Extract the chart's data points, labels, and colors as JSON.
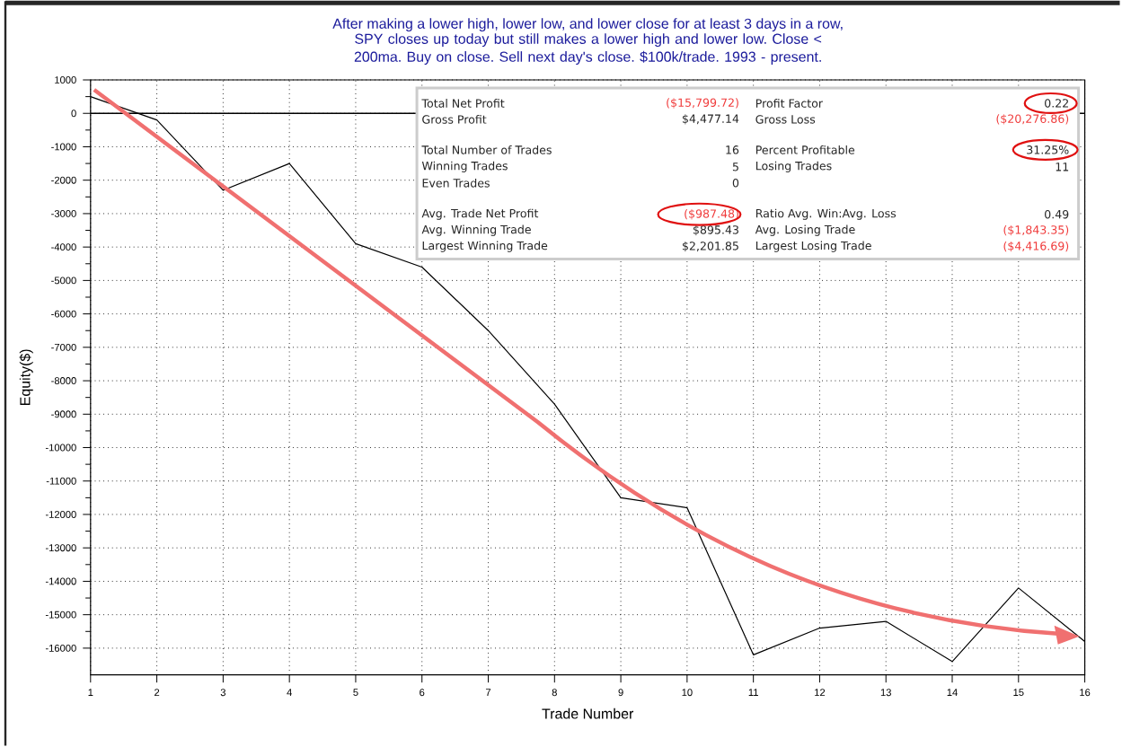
{
  "chart_data": {
    "type": "line",
    "title": "After making a lower high, lower low, and lower close for at least 3 days in a row,",
    "subtitle": "SPY closes up today but still makes a lower high and lower low. Close < 200ma. Buy on close. Sell next day's close. $100k/trade. 1993 - present.",
    "xlabel": "Trade Number",
    "ylabel": "Equity($)",
    "x": [
      1,
      2,
      3,
      4,
      5,
      6,
      7,
      8,
      9,
      10,
      11,
      12,
      13,
      14,
      15,
      16
    ],
    "series": [
      {
        "color": "#000000",
        "values": [
          500,
          -200,
          -2300,
          -1500,
          -3900,
          -4600,
          -6500,
          -8700,
          -11500,
          -11800,
          -16200,
          -15400,
          -15200,
          -16400,
          -14200,
          -15800
        ]
      }
    ],
    "xlim": [
      1,
      16
    ],
    "ylim": [
      -16800,
      1000
    ],
    "xticks": [
      1,
      2,
      3,
      4,
      5,
      6,
      7,
      8,
      9,
      10,
      11,
      12,
      13,
      14,
      15,
      16
    ],
    "yticks": [
      -16000,
      -15000,
      -14000,
      -13000,
      -12000,
      -11000,
      -10000,
      -9000,
      -8000,
      -7000,
      -6000,
      -5000,
      -4000,
      -3000,
      -2000,
      -1000,
      0,
      1000
    ],
    "ref_lines": [
      {
        "axis": "y",
        "value": 0,
        "color": "#000000"
      }
    ],
    "grid": true,
    "marker": "none",
    "line_style": "solid",
    "annotations": [
      "Total Net Profit",
      "($15,799.72)",
      "Profit Factor",
      "0.22",
      "Gross Profit",
      "$4,477.14",
      "Gross Loss",
      "($20,276.86)",
      "Total Number of Trades",
      "16",
      "Percent Profitable",
      "31.25%",
      "Winning Trades",
      "5",
      "Losing Trades",
      "11",
      "Even Trades",
      "0",
      "Avg. Trade Net Profit",
      "($987.48)",
      "Ratio Avg. Win:Avg. Loss",
      "0.49",
      "Avg. Winning Trade",
      "$895.43",
      "Avg. Losing Trade",
      "($1,843.35)",
      "Largest Winning Trade",
      "$2,201.85",
      "Largest Losing Trade",
      "($4,416.69)"
    ]
  }
}
